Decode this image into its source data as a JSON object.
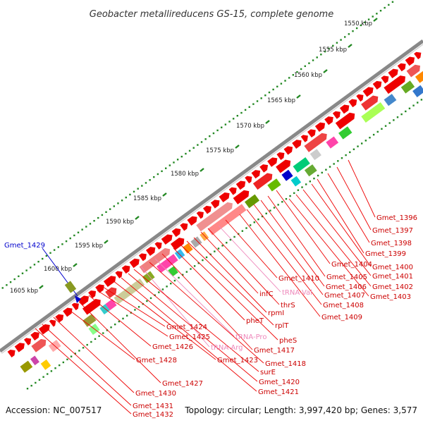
{
  "title": "Geobacter metallireducens GS-15, complete genome",
  "accession": "Accession: NC_007517",
  "summary": "Topology: circular; Length: 3,997,420 bp; Genes: 3,577",
  "scale_ticks": [
    "1550 kbp",
    "1555 kbp",
    "1560 kbp",
    "1565 kbp",
    "1570 kbp",
    "1575 kbp",
    "1580 kbp",
    "1585 kbp",
    "1590 kbp",
    "1595 kbp",
    "1600 kbp",
    "1605 kbp"
  ],
  "colors": {
    "backbone": "#888888",
    "gene": "#ee0000",
    "label_line": "#ee0000",
    "label_text": "#cc0000",
    "trna": "#ee88bb",
    "highlight": "#0000cc",
    "ticks": "#228822"
  },
  "highlighted_gene": "Gmet_1429",
  "gene_labels": [
    {
      "text": "Gmet_1396",
      "type": "cds"
    },
    {
      "text": "Gmet_1397",
      "type": "cds"
    },
    {
      "text": "Gmet_1398",
      "type": "cds"
    },
    {
      "text": "Gmet_1399",
      "type": "cds"
    },
    {
      "text": "Gmet_1400",
      "type": "cds"
    },
    {
      "text": "Gmet_1401",
      "type": "cds"
    },
    {
      "text": "Gmet_1402",
      "type": "cds"
    },
    {
      "text": "Gmet_1403",
      "type": "cds"
    },
    {
      "text": "Gmet_1404",
      "type": "cds"
    },
    {
      "text": "Gmet_1405",
      "type": "cds"
    },
    {
      "text": "Gmet_1406",
      "type": "cds"
    },
    {
      "text": "Gmet_1407",
      "type": "cds"
    },
    {
      "text": "Gmet_1408",
      "type": "cds"
    },
    {
      "text": "Gmet_1409",
      "type": "cds"
    },
    {
      "text": "Gmet_1410",
      "type": "cds"
    },
    {
      "text": "tRNA-Val",
      "type": "trna"
    },
    {
      "text": "infC",
      "type": "cds"
    },
    {
      "text": "thrS",
      "type": "cds"
    },
    {
      "text": "rpmI",
      "type": "cds"
    },
    {
      "text": "rplT",
      "type": "cds"
    },
    {
      "text": "pheT",
      "type": "cds"
    },
    {
      "text": "pheS",
      "type": "cds"
    },
    {
      "text": "tRNA-Pro",
      "type": "trna"
    },
    {
      "text": "tRNA-Arg",
      "type": "trna"
    },
    {
      "text": "Gmet_1417",
      "type": "cds"
    },
    {
      "text": "Gmet_1418",
      "type": "cds"
    },
    {
      "text": "surE",
      "type": "cds"
    },
    {
      "text": "Gmet_1420",
      "type": "cds"
    },
    {
      "text": "Gmet_1421",
      "type": "cds"
    },
    {
      "text": "Gmet_1423",
      "type": "cds"
    },
    {
      "text": "Gmet_1424",
      "type": "cds"
    },
    {
      "text": "Gmet_1425",
      "type": "cds"
    },
    {
      "text": "Gmet_1426",
      "type": "cds"
    },
    {
      "text": "Gmet_1427",
      "type": "cds"
    },
    {
      "text": "Gmet_1428",
      "type": "cds"
    },
    {
      "text": "Gmet_1430",
      "type": "cds"
    },
    {
      "text": "Gmet_1431",
      "type": "cds"
    },
    {
      "text": "Gmet_1432",
      "type": "cds"
    }
  ]
}
